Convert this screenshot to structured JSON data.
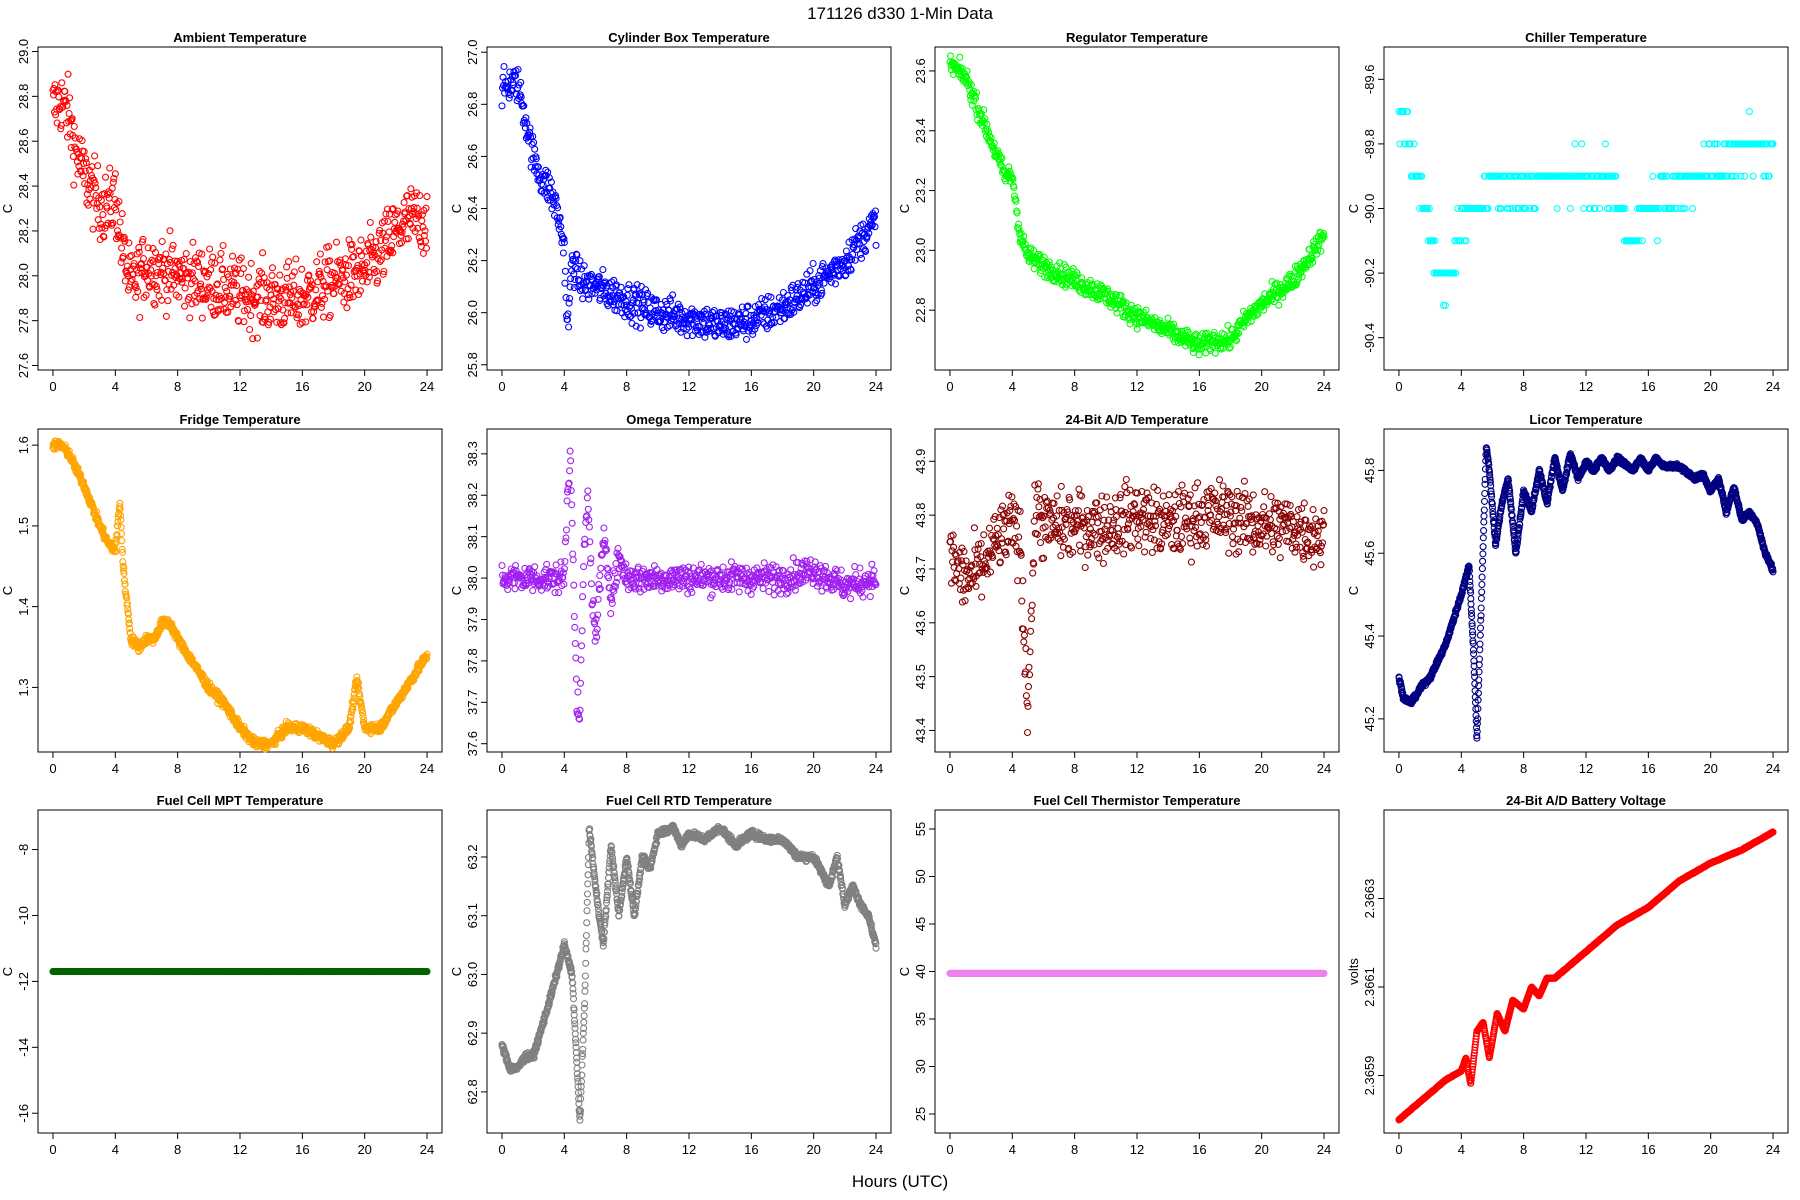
{
  "figure": {
    "title": "171126   d330   1-Min Data",
    "xlabel": "Hours (UTC)"
  },
  "chart_data": [
    {
      "type": "scatter",
      "title": "Ambient Temperature",
      "ylabel": "C",
      "color": "#ff0000",
      "xlim": [
        0,
        24
      ],
      "ylim": [
        27.58,
        29.02
      ],
      "xticks": [
        0,
        4,
        8,
        12,
        16,
        20,
        24
      ],
      "yticks": [
        27.6,
        27.8,
        28.0,
        28.2,
        28.4,
        28.6,
        28.8,
        29.0
      ],
      "ytick_labels": [
        "27.6",
        "27.8",
        "28.0",
        "28.2",
        "28.4",
        "28.6",
        "28.8",
        "29.0"
      ],
      "x": [
        0,
        0.5,
        1,
        1.5,
        2,
        2.5,
        3,
        3.5,
        4,
        4.5,
        5,
        6,
        8,
        10,
        12,
        14,
        16,
        18,
        20,
        21,
        22,
        23,
        24
      ],
      "y": [
        28.75,
        28.78,
        28.72,
        28.55,
        28.45,
        28.38,
        28.32,
        28.3,
        28.35,
        28.1,
        27.95,
        28.05,
        28.0,
        27.97,
        27.92,
        27.9,
        27.9,
        27.98,
        28.02,
        28.1,
        28.2,
        28.25,
        28.25
      ],
      "noise": 0.11,
      "density": 1.0
    },
    {
      "type": "scatter",
      "title": "Cylinder Box Temperature",
      "ylabel": "C",
      "color": "#0000ff",
      "xlim": [
        0,
        24
      ],
      "ylim": [
        25.78,
        27.02
      ],
      "xticks": [
        0,
        4,
        8,
        12,
        16,
        20,
        24
      ],
      "yticks": [
        25.8,
        26.0,
        26.2,
        26.4,
        26.6,
        26.8,
        27.0
      ],
      "ytick_labels": [
        "25.8",
        "26.0",
        "26.2",
        "26.4",
        "26.6",
        "26.8",
        "27.0"
      ],
      "x": [
        0,
        0.5,
        1,
        1.5,
        2,
        2.5,
        3,
        3.5,
        4,
        4.2,
        4.5,
        5,
        6,
        8,
        10,
        12,
        14,
        16,
        18,
        20,
        21,
        22,
        23,
        24
      ],
      "y": [
        26.85,
        26.88,
        26.88,
        26.75,
        26.6,
        26.52,
        26.48,
        26.4,
        26.25,
        25.92,
        26.2,
        26.12,
        26.1,
        26.05,
        26.0,
        25.98,
        25.95,
        25.97,
        26.02,
        26.1,
        26.15,
        26.2,
        26.28,
        26.35
      ],
      "noise": 0.05,
      "density": 1.0
    },
    {
      "type": "scatter",
      "title": "Regulator Temperature",
      "ylabel": "C",
      "color": "#00ff00",
      "xlim": [
        0,
        24
      ],
      "ylim": [
        22.6,
        23.68
      ],
      "xticks": [
        0,
        4,
        8,
        12,
        16,
        20,
        24
      ],
      "yticks": [
        22.8,
        23.0,
        23.2,
        23.4,
        23.6
      ],
      "ytick_labels": [
        "22.8",
        "23.0",
        "23.2",
        "23.4",
        "23.6"
      ],
      "x": [
        0,
        1,
        2,
        3,
        3.5,
        4,
        4.5,
        5,
        6,
        8,
        10,
        12,
        14,
        16,
        17,
        18,
        19,
        20,
        22,
        24
      ],
      "y": [
        23.62,
        23.58,
        23.45,
        23.32,
        23.25,
        23.25,
        23.05,
        22.98,
        22.95,
        22.9,
        22.85,
        22.78,
        22.73,
        22.68,
        22.7,
        22.7,
        22.77,
        22.82,
        22.9,
        23.05
      ],
      "noise": 0.025,
      "density": 1.0
    },
    {
      "type": "scatter",
      "title": "Chiller Temperature",
      "ylabel": "C",
      "color": "#00ffff",
      "xlim": [
        0,
        24
      ],
      "ylim": [
        -90.5,
        -89.5
      ],
      "xticks": [
        0,
        4,
        8,
        12,
        16,
        20,
        24
      ],
      "yticks": [
        -90.4,
        -90.2,
        -90.0,
        -89.8,
        -89.6
      ],
      "ytick_labels": [
        "-90.4",
        "-90.2",
        "-90.0",
        "-89.8",
        "-89.6"
      ],
      "x": [
        0,
        1,
        2,
        3,
        4,
        5,
        6,
        8,
        10,
        12,
        14,
        15,
        16,
        18,
        20,
        22,
        24
      ],
      "y": [
        -89.7,
        -89.85,
        -90.1,
        -90.25,
        -90.05,
        -90.0,
        -89.92,
        -89.92,
        -89.92,
        -89.9,
        -89.95,
        -90.12,
        -90.0,
        -89.95,
        -89.85,
        -89.82,
        -89.8
      ],
      "noise": 0.05,
      "density": 0.55,
      "quantum": 0.1
    },
    {
      "type": "scatter",
      "title": "Fridge Temperature",
      "ylabel": "C",
      "color": "#ffa500",
      "xlim": [
        0,
        24
      ],
      "ylim": [
        1.22,
        1.62
      ],
      "xticks": [
        0,
        4,
        8,
        12,
        16,
        20,
        24
      ],
      "yticks": [
        1.3,
        1.4,
        1.5,
        1.6
      ],
      "ytick_labels": [
        "1.3",
        "1.4",
        "1.5",
        "1.6"
      ],
      "x": [
        0,
        0.5,
        1,
        2,
        3,
        3.5,
        4,
        4.3,
        4.5,
        5,
        5.5,
        6,
        6.5,
        7,
        7.5,
        8,
        9,
        10,
        11,
        12,
        13,
        14,
        15,
        16,
        17,
        18,
        19,
        19.5,
        20,
        21,
        22,
        23,
        24
      ],
      "y": [
        1.6,
        1.6,
        1.59,
        1.55,
        1.5,
        1.48,
        1.47,
        1.53,
        1.45,
        1.36,
        1.35,
        1.36,
        1.36,
        1.38,
        1.38,
        1.36,
        1.33,
        1.3,
        1.28,
        1.25,
        1.23,
        1.23,
        1.25,
        1.25,
        1.24,
        1.23,
        1.25,
        1.31,
        1.25,
        1.25,
        1.28,
        1.31,
        1.34
      ],
      "noise": 0.004,
      "density": 1.6
    },
    {
      "type": "scatter",
      "title": "Omega Temperature",
      "ylabel": "C",
      "color": "#a020f0",
      "xlim": [
        0,
        24
      ],
      "ylim": [
        37.58,
        38.36
      ],
      "xticks": [
        0,
        4,
        8,
        12,
        16,
        20,
        24
      ],
      "yticks": [
        37.6,
        37.7,
        37.8,
        37.9,
        38.0,
        38.1,
        38.2,
        38.3
      ],
      "ytick_labels": [
        "37.6",
        "37.7",
        "37.8",
        "37.9",
        "38.0",
        "38.1",
        "38.2",
        "38.3"
      ],
      "x": [
        0,
        1,
        2,
        3,
        4,
        4.2,
        4.4,
        4.6,
        4.8,
        5,
        5.2,
        5.5,
        5.8,
        6,
        6.3,
        6.6,
        7,
        7.5,
        8,
        10,
        12,
        14,
        16,
        18,
        20,
        22,
        24
      ],
      "y": [
        38.0,
        38.0,
        38.0,
        38.0,
        38.0,
        38.2,
        38.3,
        38.0,
        37.7,
        37.65,
        38.0,
        38.2,
        37.95,
        37.85,
        38.0,
        38.1,
        37.95,
        38.05,
        38.0,
        38.0,
        38.0,
        38.0,
        38.0,
        38.0,
        38.02,
        37.98,
        38.0
      ],
      "noise": 0.025,
      "density": 1.0
    },
    {
      "type": "scatter",
      "title": "24-Bit A/D Temperature",
      "ylabel": "C",
      "color": "#8b0000",
      "xlim": [
        0,
        24
      ],
      "ylim": [
        43.36,
        43.96
      ],
      "xticks": [
        0,
        4,
        8,
        12,
        16,
        20,
        24
      ],
      "yticks": [
        43.4,
        43.5,
        43.6,
        43.7,
        43.8,
        43.9
      ],
      "ytick_labels": [
        "43.4",
        "43.5",
        "43.6",
        "43.7",
        "43.8",
        "43.9"
      ],
      "x": [
        0,
        1,
        2,
        3,
        4,
        4.5,
        4.8,
        5,
        5.2,
        5.5,
        6,
        7,
        8,
        10,
        12,
        14,
        16,
        18,
        20,
        22,
        24
      ],
      "y": [
        43.72,
        43.68,
        43.7,
        43.75,
        43.78,
        43.75,
        43.55,
        43.45,
        43.6,
        43.82,
        43.78,
        43.78,
        43.78,
        43.78,
        43.8,
        43.78,
        43.8,
        43.8,
        43.78,
        43.78,
        43.76
      ],
      "noise": 0.045,
      "density": 1.0
    },
    {
      "type": "scatter",
      "title": "Licor Temperature",
      "ylabel": "C",
      "color": "#000080",
      "xlim": [
        0,
        24
      ],
      "ylim": [
        45.12,
        45.9
      ],
      "xticks": [
        0,
        4,
        8,
        12,
        16,
        20,
        24
      ],
      "yticks": [
        45.2,
        45.4,
        45.6,
        45.8
      ],
      "ytick_labels": [
        "45.2",
        "45.4",
        "45.6",
        "45.8"
      ],
      "x": [
        0,
        0.3,
        0.8,
        1.5,
        2,
        3,
        3.5,
        4,
        4.5,
        4.8,
        5,
        5.3,
        5.6,
        5.8,
        6.2,
        6.6,
        7,
        7.5,
        8,
        8.5,
        9,
        9.5,
        10,
        10.5,
        11,
        11.5,
        12,
        12.5,
        13,
        13.5,
        14,
        15,
        15.5,
        16,
        16.5,
        17,
        18,
        19,
        19.5,
        20,
        20.5,
        21,
        21.5,
        22,
        22.5,
        23,
        23.5,
        24
      ],
      "y": [
        45.3,
        45.25,
        45.24,
        45.28,
        45.3,
        45.38,
        45.44,
        45.5,
        45.57,
        45.35,
        45.15,
        45.5,
        45.86,
        45.8,
        45.62,
        45.72,
        45.78,
        45.6,
        45.75,
        45.7,
        45.8,
        45.72,
        45.83,
        45.75,
        45.84,
        45.78,
        45.82,
        45.8,
        45.83,
        45.8,
        45.83,
        45.8,
        45.83,
        45.8,
        45.83,
        45.81,
        45.81,
        45.78,
        45.79,
        45.75,
        45.78,
        45.7,
        45.76,
        45.68,
        45.7,
        45.67,
        45.6,
        45.56
      ],
      "noise": 0.004,
      "density": 2.2
    },
    {
      "type": "scatter",
      "title": "Fuel Cell MPT Temperature",
      "ylabel": "C",
      "color": "#006400",
      "xlim": [
        0,
        24
      ],
      "ylim": [
        -16.6,
        -6.8
      ],
      "xticks": [
        0,
        4,
        8,
        12,
        16,
        20,
        24
      ],
      "yticks": [
        -16,
        -14,
        -12,
        -10,
        -8
      ],
      "ytick_labels": [
        "-16",
        "-14",
        "-12",
        "-10",
        "-8"
      ],
      "x": [
        0,
        24
      ],
      "y": [
        -11.7,
        -11.7
      ],
      "noise": 0,
      "density": 2.0
    },
    {
      "type": "scatter",
      "title": "Fuel Cell RTD Temperature",
      "ylabel": "C",
      "color": "#808080",
      "xlim": [
        0,
        24
      ],
      "ylim": [
        62.73,
        63.28
      ],
      "xticks": [
        0,
        4,
        8,
        12,
        16,
        20,
        24
      ],
      "yticks": [
        62.8,
        62.9,
        63.0,
        63.1,
        63.2
      ],
      "ytick_labels": [
        "62.8",
        "62.9",
        "63.0",
        "63.1",
        "63.2"
      ],
      "x": [
        0,
        0.5,
        1,
        1.5,
        2,
        3,
        3.5,
        4,
        4.5,
        4.8,
        5,
        5.3,
        5.6,
        6,
        6.5,
        7,
        7.5,
        8,
        8.5,
        9,
        9.5,
        10,
        11,
        11.5,
        12,
        13,
        14,
        15,
        16,
        17,
        18,
        19,
        20,
        21,
        21.5,
        22,
        22.5,
        23,
        23.5,
        24
      ],
      "y": [
        62.88,
        62.84,
        62.84,
        62.86,
        62.86,
        62.95,
        63.0,
        63.05,
        63.0,
        62.85,
        62.75,
        62.95,
        63.25,
        63.15,
        63.05,
        63.22,
        63.1,
        63.2,
        63.1,
        63.2,
        63.18,
        63.24,
        63.25,
        63.22,
        63.24,
        63.23,
        63.25,
        63.22,
        63.24,
        63.23,
        63.23,
        63.2,
        63.2,
        63.15,
        63.2,
        63.12,
        63.15,
        63.12,
        63.1,
        63.05
      ],
      "noise": 0.004,
      "density": 2.0
    },
    {
      "type": "scatter",
      "title": "Fuel Cell Thermistor Temperature",
      "ylabel": "C",
      "color": "#ee82ee",
      "xlim": [
        0,
        24
      ],
      "ylim": [
        23,
        57
      ],
      "xticks": [
        0,
        4,
        8,
        12,
        16,
        20,
        24
      ],
      "yticks": [
        25,
        30,
        35,
        40,
        45,
        50,
        55
      ],
      "ytick_labels": [
        "25",
        "30",
        "35",
        "40",
        "45",
        "50",
        "55"
      ],
      "x": [
        0,
        24
      ],
      "y": [
        39.8,
        39.8
      ],
      "noise": 0,
      "density": 2.0
    },
    {
      "type": "scatter",
      "title": "24-Bit A/D Battery Voltage",
      "ylabel": "volts",
      "color": "#ff0000",
      "xlim": [
        0,
        24
      ],
      "ylim": [
        2.36577,
        2.3665
      ],
      "xticks": [
        0,
        4,
        8,
        12,
        16,
        20,
        24
      ],
      "yticks": [
        2.3659,
        2.3661,
        2.3663
      ],
      "ytick_labels": [
        "2.3659",
        "2.3661",
        "2.3663"
      ],
      "x": [
        0,
        1,
        2,
        3,
        4,
        4.3,
        4.6,
        5,
        5.4,
        5.8,
        6.3,
        6.8,
        7.3,
        8,
        8.5,
        9,
        9.5,
        10,
        12,
        14,
        16,
        18,
        20,
        22,
        23,
        24
      ],
      "y": [
        2.3658,
        2.36583,
        2.36586,
        2.36589,
        2.36591,
        2.36594,
        2.36588,
        2.366,
        2.36602,
        2.36594,
        2.36604,
        2.366,
        2.36607,
        2.36605,
        2.3661,
        2.36608,
        2.36612,
        2.36612,
        2.36618,
        2.36624,
        2.36628,
        2.36634,
        2.36638,
        2.36641,
        2.36643,
        2.36645
      ],
      "noise": 6e-07,
      "density": 1.6
    }
  ]
}
